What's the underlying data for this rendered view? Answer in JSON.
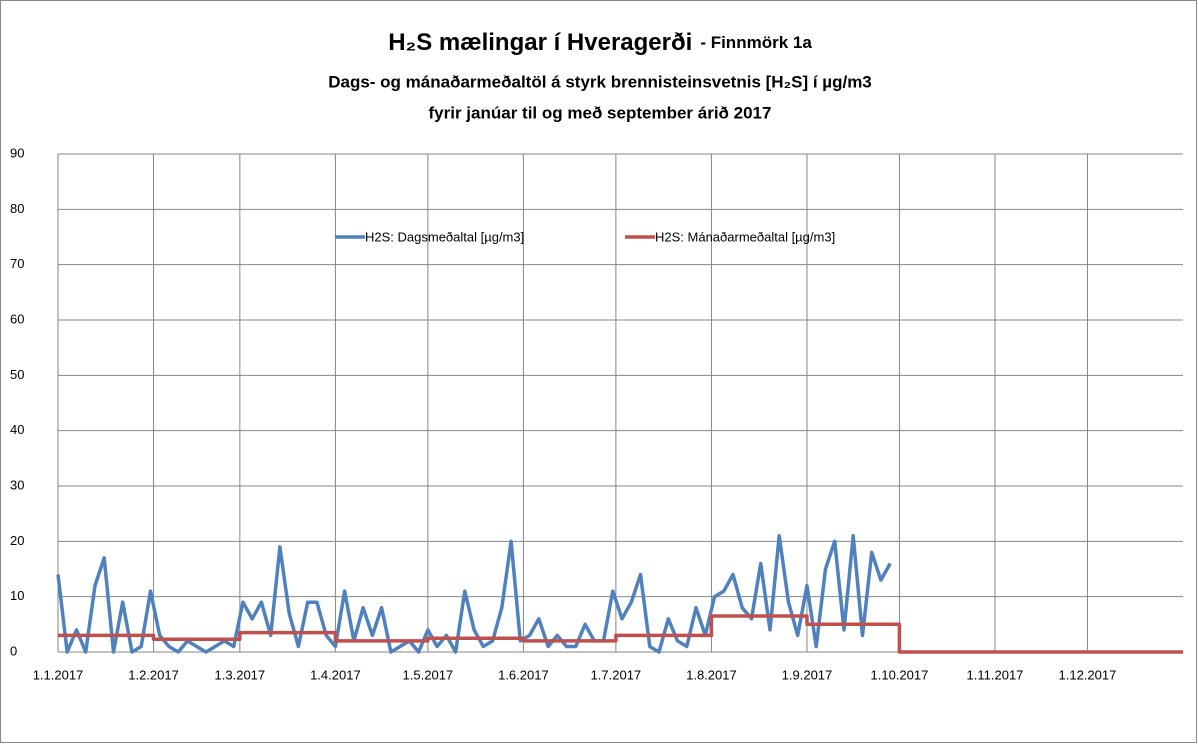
{
  "chart_data": {
    "type": "line",
    "title": "H₂S mælingar í Hveragerði",
    "title_note": "- Finnmörk 1a",
    "subtitle": [
      "Dags- og mánaðarmeðaltöl á styrk brennisteinsvetnis [H₂S] í µg/m3",
      "fyrir janúar til og með september árið 2017"
    ],
    "xlim": [
      0,
      365
    ],
    "xticks": [
      {
        "value": 0,
        "label": "1.1.2017"
      },
      {
        "value": 31,
        "label": "1.2.2017"
      },
      {
        "value": 59,
        "label": "1.3.2017"
      },
      {
        "value": 90,
        "label": "1.4.2017"
      },
      {
        "value": 120,
        "label": "1.5.2017"
      },
      {
        "value": 151,
        "label": "1.6.2017"
      },
      {
        "value": 181,
        "label": "1.7.2017"
      },
      {
        "value": 212,
        "label": "1.8.2017"
      },
      {
        "value": 243,
        "label": "1.9.2017"
      },
      {
        "value": 273,
        "label": "1.10.2017"
      },
      {
        "value": 304,
        "label": "1.11.2017"
      },
      {
        "value": 334,
        "label": "1.12.2017"
      }
    ],
    "ylim": [
      0,
      90
    ],
    "yticks": [
      0,
      10,
      20,
      30,
      40,
      50,
      60,
      70,
      80,
      90
    ],
    "grid": true,
    "legend": "top",
    "series": [
      {
        "name": "H2S: Dagsmeðaltal  [µg/m3]",
        "color": "#4f81bd",
        "x": [
          0,
          3,
          6,
          9,
          12,
          15,
          18,
          21,
          24,
          27,
          30,
          33,
          36,
          39,
          42,
          45,
          48,
          51,
          54,
          57,
          60,
          63,
          66,
          69,
          72,
          75,
          78,
          81,
          84,
          87,
          90,
          93,
          96,
          99,
          102,
          105,
          108,
          111,
          114,
          117,
          120,
          123,
          126,
          129,
          132,
          135,
          138,
          141,
          144,
          147,
          150,
          153,
          156,
          159,
          162,
          165,
          168,
          171,
          174,
          177,
          180,
          183,
          186,
          189,
          192,
          195,
          198,
          201,
          204,
          207,
          210,
          213,
          216,
          219,
          222,
          225,
          228,
          231,
          234,
          237,
          240,
          243,
          246,
          249,
          252,
          255,
          258,
          261,
          264,
          267,
          270
        ],
        "values": [
          14,
          0,
          4,
          0,
          12,
          17,
          0,
          9,
          0,
          1,
          11,
          3,
          1,
          0,
          2,
          1,
          0,
          1,
          2,
          1,
          9,
          6,
          9,
          3,
          19,
          7,
          1,
          9,
          9,
          3,
          1,
          11,
          2,
          8,
          3,
          8,
          0,
          1,
          2,
          0,
          4,
          1,
          3,
          0,
          11,
          4,
          1,
          2,
          8,
          20,
          2,
          3,
          6,
          1,
          3,
          1,
          1,
          5,
          2,
          2,
          11,
          6,
          9,
          14,
          1,
          0,
          6,
          2,
          1,
          8,
          3,
          10,
          11,
          14,
          8,
          6,
          16,
          4,
          21,
          9,
          3,
          12,
          1,
          15,
          20,
          4,
          21,
          3,
          18,
          13,
          16
        ]
      },
      {
        "name": "H2S: Mánaðarmeðaltal  [µg/m3]",
        "color": "#c0504d",
        "x": [
          0,
          31,
          31,
          59,
          59,
          90,
          90,
          120,
          120,
          151,
          151,
          181,
          181,
          212,
          212,
          243,
          243,
          273,
          273,
          365
        ],
        "values": [
          3,
          3,
          2.3,
          2.3,
          3.5,
          3.5,
          2,
          2,
          2.5,
          2.5,
          2,
          2,
          3,
          3,
          6.5,
          6.5,
          5,
          5,
          0,
          0
        ]
      }
    ]
  }
}
